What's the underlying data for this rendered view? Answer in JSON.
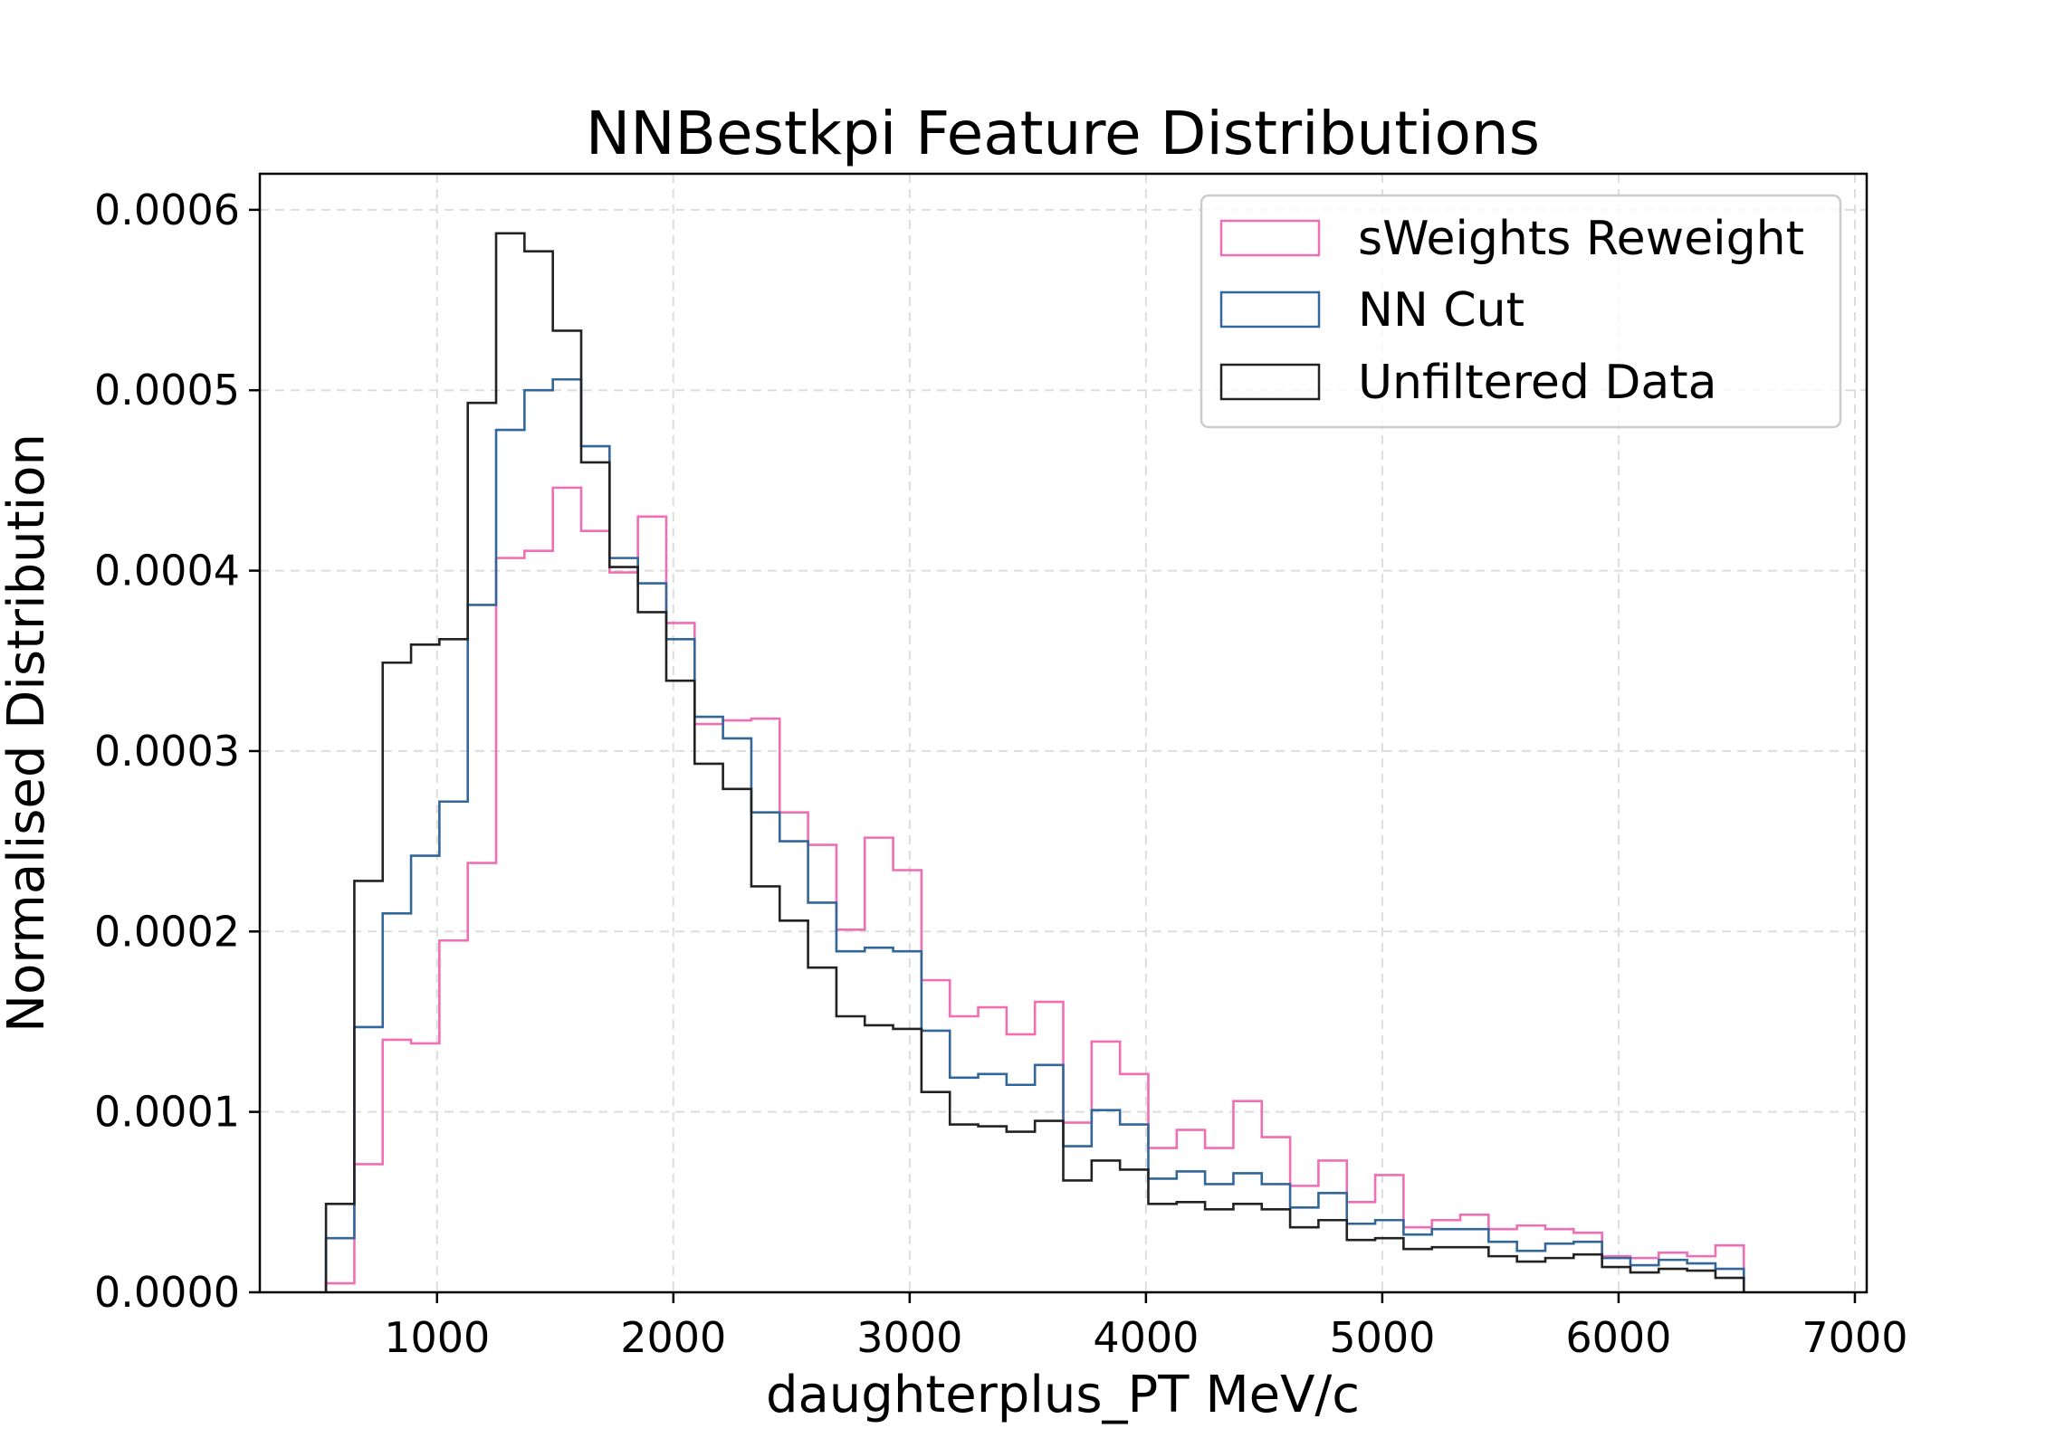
{
  "chart_data": {
    "type": "histogram",
    "title": "NNBestkpi Feature Distributions",
    "xlabel": "daughterplus_PT MeV/c",
    "ylabel": "Normalised Distribution",
    "xlim": [
      250,
      7050
    ],
    "ylim": [
      0,
      0.00062
    ],
    "x_ticks": [
      1000,
      2000,
      3000,
      4000,
      5000,
      6000,
      7000
    ],
    "x_tick_labels": [
      "1000",
      "2000",
      "3000",
      "4000",
      "5000",
      "6000",
      "7000"
    ],
    "y_ticks": [
      0,
      0.0001,
      0.0002,
      0.0003,
      0.0004,
      0.0005,
      0.0006
    ],
    "y_tick_labels": [
      "0.0000",
      "0.0001",
      "0.0002",
      "0.0003",
      "0.0004",
      "0.0005",
      "0.0006"
    ],
    "grid": true,
    "legend_position": "top-right",
    "bin_start": 530,
    "bin_width": 120,
    "series": [
      {
        "name": "sWeights Reweight",
        "color": "#f06eb4",
        "values": [
          5e-06,
          7.1e-05,
          0.00014,
          0.000138,
          0.000195,
          0.000238,
          0.000407,
          0.000411,
          0.000446,
          0.000422,
          0.000399,
          0.00043,
          0.000371,
          0.000315,
          0.000317,
          0.000318,
          0.000266,
          0.000248,
          0.000201,
          0.000252,
          0.000234,
          0.000173,
          0.000153,
          0.000158,
          0.000143,
          0.000161,
          9.4e-05,
          0.000139,
          0.000121,
          8e-05,
          9e-05,
          8e-05,
          0.000106,
          8.6e-05,
          5.9e-05,
          7.3e-05,
          5e-05,
          6.5e-05,
          3.6e-05,
          4e-05,
          4.3e-05,
          3.5e-05,
          3.7e-05,
          3.5e-05,
          3.3e-05,
          2e-05,
          1.9e-05,
          2.2e-05,
          2e-05,
          2.6e-05
        ]
      },
      {
        "name": "NN Cut",
        "color": "#336699",
        "values": [
          3e-05,
          0.000147,
          0.00021,
          0.000242,
          0.000272,
          0.000381,
          0.000478,
          0.0005,
          0.000506,
          0.000469,
          0.000407,
          0.000393,
          0.000362,
          0.000319,
          0.000307,
          0.000266,
          0.00025,
          0.000216,
          0.000189,
          0.000191,
          0.000189,
          0.000145,
          0.000119,
          0.000121,
          0.000115,
          0.000126,
          8.1e-05,
          0.000101,
          9.3e-05,
          6.3e-05,
          6.7e-05,
          6e-05,
          6.6e-05,
          6e-05,
          4.7e-05,
          5.5e-05,
          3.8e-05,
          4e-05,
          3.2e-05,
          3.5e-05,
          3.5e-05,
          2.8e-05,
          2.3e-05,
          2.7e-05,
          2.8e-05,
          1.9e-05,
          1.5e-05,
          1.8e-05,
          1.6e-05,
          1.3e-05
        ]
      },
      {
        "name": "Unfiltered Data",
        "color": "#222222",
        "values": [
          4.9e-05,
          0.000228,
          0.000349,
          0.000359,
          0.000362,
          0.000493,
          0.000587,
          0.000577,
          0.000533,
          0.00046,
          0.000402,
          0.000377,
          0.000339,
          0.000293,
          0.000279,
          0.000225,
          0.000206,
          0.00018,
          0.000153,
          0.000148,
          0.000146,
          0.000111,
          9.3e-05,
          9.2e-05,
          8.9e-05,
          9.5e-05,
          6.2e-05,
          7.3e-05,
          6.8e-05,
          4.9e-05,
          5e-05,
          4.6e-05,
          4.9e-05,
          4.6e-05,
          3.6e-05,
          4e-05,
          2.9e-05,
          3e-05,
          2.4e-05,
          2.5e-05,
          2.5e-05,
          2e-05,
          1.7e-05,
          1.9e-05,
          2.1e-05,
          1.4e-05,
          1.1e-05,
          1.3e-05,
          1.2e-05,
          8e-06
        ]
      }
    ]
  }
}
